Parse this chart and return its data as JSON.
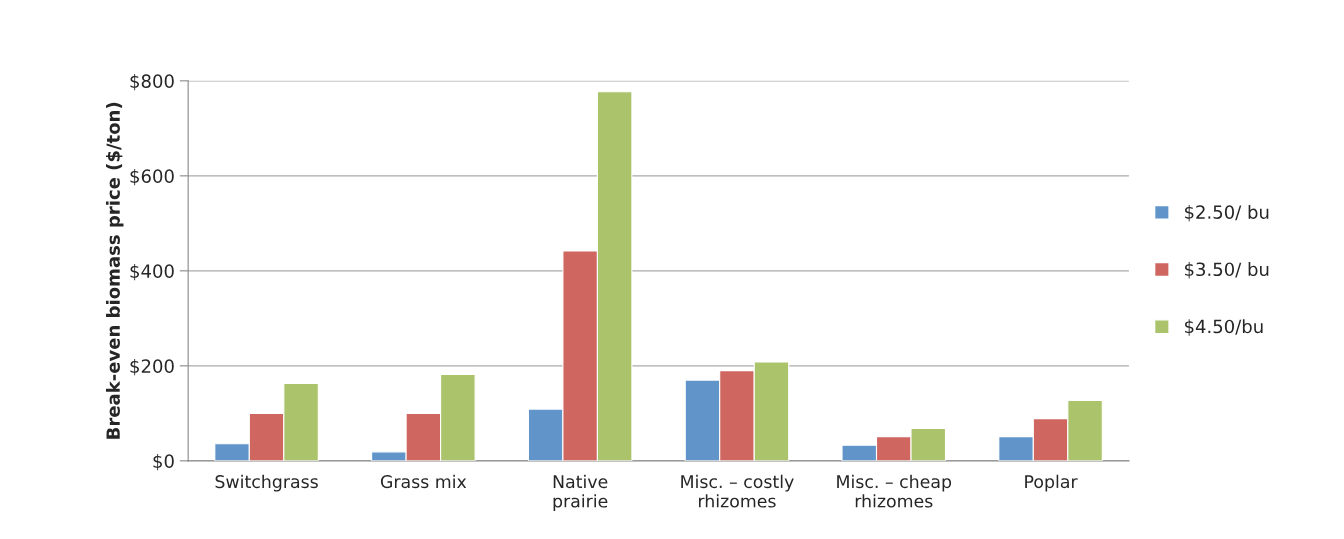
{
  "chart_data": {
    "type": "bar",
    "ylabel": "Break-even biomass price ($/ton)",
    "categories": [
      "Switchgrass",
      "Grass mix",
      "Native\nprairie",
      "Misc. – costly\nrhizomes",
      "Misc. – cheap\nrhizomes",
      "Poplar"
    ],
    "series": [
      {
        "name": "$2.50/ bu",
        "color": "#6194c9",
        "values": [
          36,
          19,
          109,
          170,
          33,
          51
        ]
      },
      {
        "name": "$3.50/ bu",
        "color": "#cf6660",
        "values": [
          100,
          100,
          442,
          190,
          51,
          89
        ]
      },
      {
        "name": "$4.50/bu",
        "color": "#abc46c",
        "values": [
          163,
          182,
          777,
          208,
          68,
          127
        ]
      }
    ],
    "ylim": [
      0,
      800
    ],
    "yticks": [
      {
        "value": 0,
        "label": "$0"
      },
      {
        "value": 200,
        "label": "$200"
      },
      {
        "value": 400,
        "label": "$400"
      },
      {
        "value": 600,
        "label": "$600"
      },
      {
        "value": 800,
        "label": "$800"
      }
    ],
    "grid": "y",
    "legend": "right"
  }
}
